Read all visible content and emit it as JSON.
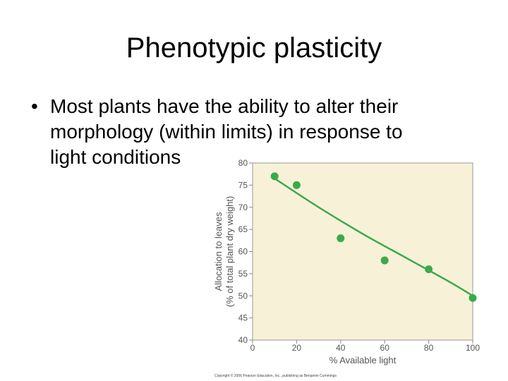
{
  "slide": {
    "title": "Phenotypic plasticity",
    "bullet_marker": "•",
    "bullet_lines": [
      "Most plants have the ability to alter their",
      "morphology (within limits) in response to",
      "light conditions"
    ]
  },
  "chart_data": {
    "type": "scatter",
    "title": "",
    "xlabel": "% Available light",
    "ylabel_line1": "Allocation to leaves",
    "ylabel_line2": "(% of total plant dry weight)",
    "xlim": [
      0,
      100
    ],
    "ylim": [
      40,
      80
    ],
    "xticks": [
      0,
      20,
      40,
      60,
      80,
      100
    ],
    "yticks": [
      40,
      45,
      50,
      55,
      60,
      65,
      70,
      75,
      80
    ],
    "points": [
      {
        "x": 10,
        "y": 77
      },
      {
        "x": 20,
        "y": 75
      },
      {
        "x": 40,
        "y": 63
      },
      {
        "x": 60,
        "y": 58
      },
      {
        "x": 80,
        "y": 56
      },
      {
        "x": 100,
        "y": 49.5
      }
    ],
    "trend_line": [
      {
        "x": 10,
        "y": 76.5
      },
      {
        "x": 30,
        "y": 70
      },
      {
        "x": 50,
        "y": 64
      },
      {
        "x": 70,
        "y": 58.5
      },
      {
        "x": 90,
        "y": 53
      },
      {
        "x": 100,
        "y": 50
      }
    ],
    "colors": {
      "plot_background": "#f7f1d8",
      "point": "#3aaa4a",
      "line": "#3aaa4a",
      "axis_text": "#555555"
    },
    "grid": false
  },
  "footer": {
    "copyright": "Copyright © 2006 Pearson Education, Inc., publishing as Benjamin Cummings"
  }
}
